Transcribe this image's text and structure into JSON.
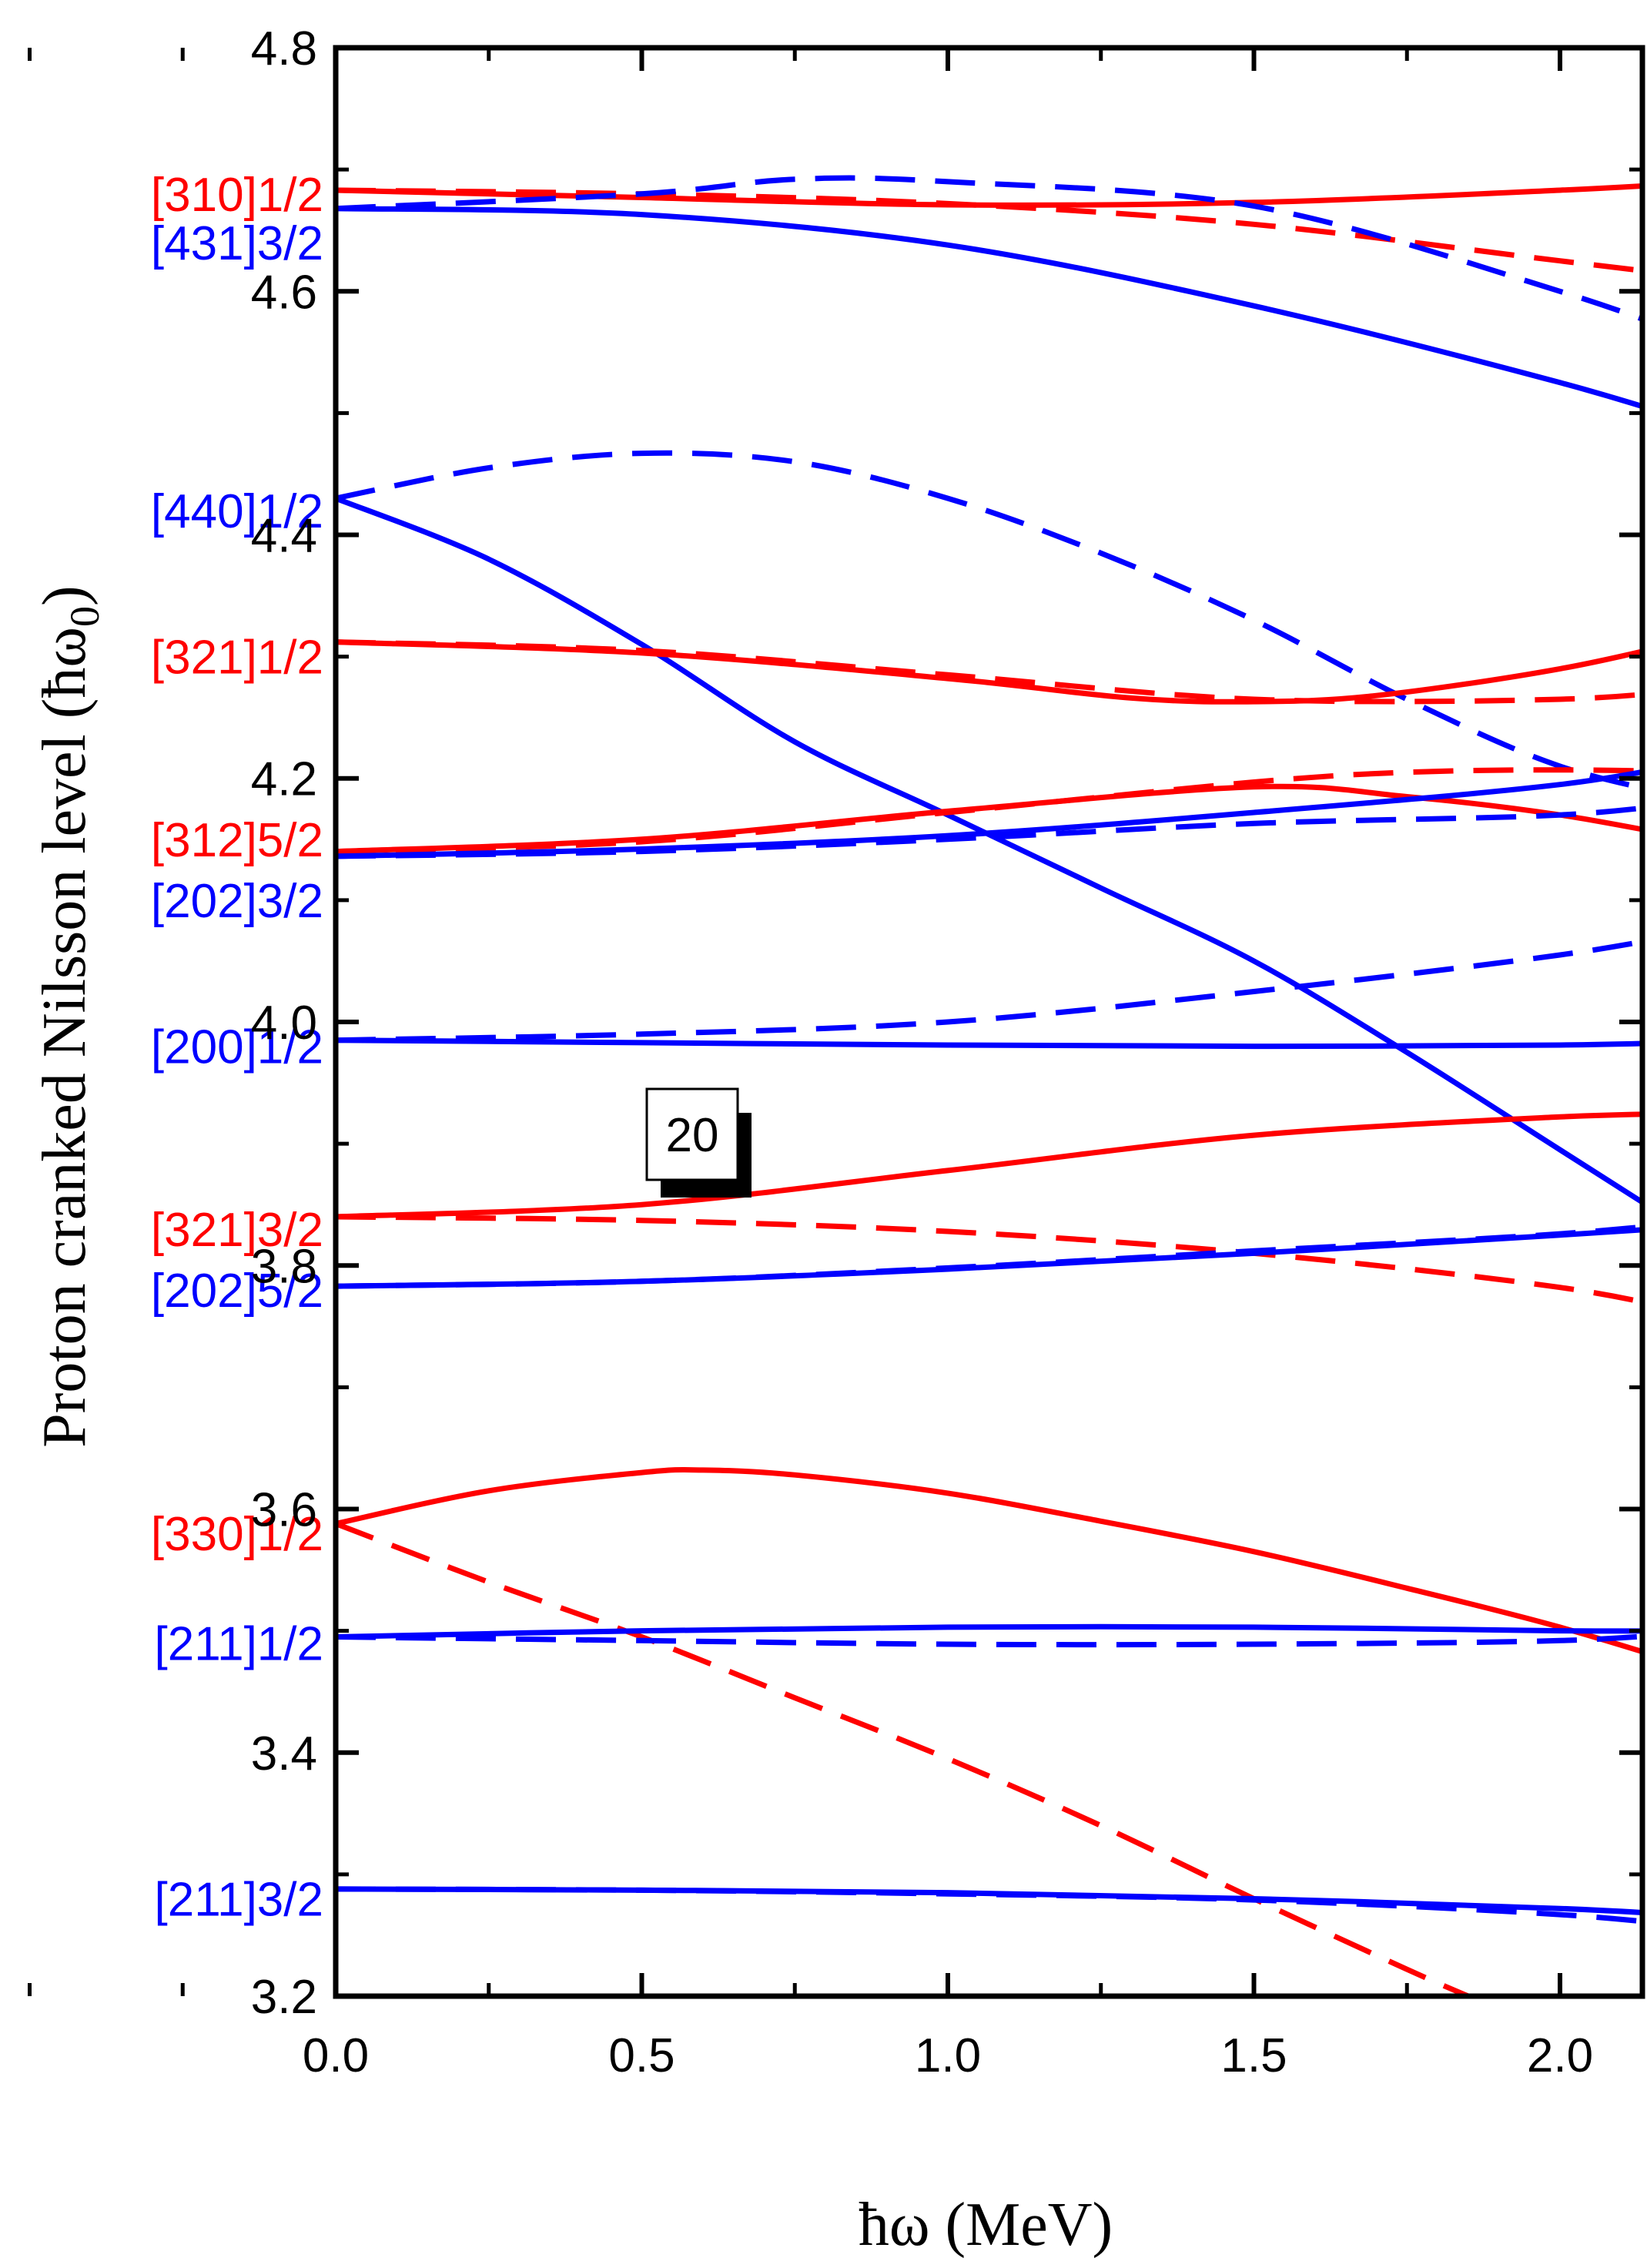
{
  "chart_data": {
    "type": "line",
    "xlabel": "ħω (MeV)",
    "ylabel_text": "Proton cranked Nilsson level (ħω",
    "ylabel_subscript": "0",
    "ylabel_close": ")",
    "xlim": [
      -0.65,
      2.25
    ],
    "ylim": [
      3.2,
      4.8
    ],
    "xticks": [
      0.0,
      0.5,
      1.0,
      1.5,
      2.0
    ],
    "xtick_labels": [
      "0.0",
      "0.5",
      "1.0",
      "1.5",
      "2.0"
    ],
    "xminor": [
      -0.5,
      -0.25,
      0.25,
      0.75,
      1.25,
      1.75
    ],
    "yticks": [
      3.2,
      3.4,
      3.6,
      3.8,
      4.0,
      4.2,
      4.4,
      4.6,
      4.8
    ],
    "ytick_labels": [
      "3.2",
      "3.4",
      "3.6",
      "3.8",
      "4.0",
      "4.2",
      "4.4",
      "4.6",
      "4.8"
    ],
    "yminor": [
      3.3,
      3.5,
      3.7,
      3.9,
      4.1,
      4.3,
      4.5,
      4.7
    ],
    "annotation": "20",
    "colors": {
      "red": "#ff0000",
      "blue": "#0000ff"
    },
    "labels": [
      {
        "text": "[310]1/2",
        "color": "red",
        "y": 4.68
      },
      {
        "text": "[431]3/2",
        "color": "blue",
        "y": 4.64
      },
      {
        "text": "[440]1/2",
        "color": "blue",
        "y": 4.42
      },
      {
        "text": "[321]1/2",
        "color": "red",
        "y": 4.3
      },
      {
        "text": "[312]5/2",
        "color": "red",
        "y": 4.15
      },
      {
        "text": "[202]3/2",
        "color": "blue",
        "y": 4.1
      },
      {
        "text": "[200]1/2",
        "color": "blue",
        "y": 3.98
      },
      {
        "text": "[321]3/2",
        "color": "red",
        "y": 3.83
      },
      {
        "text": "[202]5/2",
        "color": "blue",
        "y": 3.78
      },
      {
        "text": "[330]1/2",
        "color": "red",
        "y": 3.58
      },
      {
        "text": "[211]1/2",
        "color": "blue",
        "y": 3.49
      },
      {
        "text": "[211]3/2",
        "color": "blue",
        "y": 3.28
      }
    ],
    "series": [
      {
        "color": "red",
        "style": "solid",
        "points": [
          [
            0,
            4.683
          ],
          [
            0.5,
            4.677
          ],
          [
            1.0,
            4.671
          ],
          [
            1.5,
            4.673
          ],
          [
            2.0,
            4.683
          ],
          [
            2.25,
            4.69
          ]
        ]
      },
      {
        "color": "red",
        "style": "dashed",
        "points": [
          [
            0,
            4.683
          ],
          [
            0.5,
            4.68
          ],
          [
            1.0,
            4.672
          ],
          [
            1.5,
            4.655
          ],
          [
            2.0,
            4.625
          ],
          [
            2.25,
            4.61
          ]
        ]
      },
      {
        "color": "blue",
        "style": "solid",
        "points": [
          [
            0,
            4.668
          ],
          [
            0.5,
            4.663
          ],
          [
            1.0,
            4.638
          ],
          [
            1.5,
            4.588
          ],
          [
            2.0,
            4.525
          ],
          [
            2.25,
            4.487
          ]
        ]
      },
      {
        "color": "blue",
        "style": "dashed",
        "points": [
          [
            0,
            4.668
          ],
          [
            0.5,
            4.68
          ],
          [
            0.75,
            4.692
          ],
          [
            1.0,
            4.69
          ],
          [
            1.5,
            4.67
          ],
          [
            2.0,
            4.6
          ],
          [
            2.25,
            4.555
          ]
        ]
      },
      {
        "color": "blue",
        "style": "solid",
        "points": [
          [
            0,
            4.43
          ],
          [
            0.25,
            4.38
          ],
          [
            0.5,
            4.31
          ],
          [
            0.75,
            4.23
          ],
          [
            1.0,
            4.17
          ],
          [
            1.25,
            4.11
          ],
          [
            1.5,
            4.05
          ],
          [
            1.75,
            3.975
          ],
          [
            2.0,
            3.895
          ],
          [
            2.25,
            3.815
          ]
        ]
      },
      {
        "color": "blue",
        "style": "dashed",
        "points": [
          [
            0,
            4.43
          ],
          [
            0.25,
            4.455
          ],
          [
            0.5,
            4.467
          ],
          [
            0.75,
            4.46
          ],
          [
            1.0,
            4.43
          ],
          [
            1.25,
            4.385
          ],
          [
            1.5,
            4.33
          ],
          [
            1.75,
            4.265
          ],
          [
            2.0,
            4.21
          ],
          [
            2.25,
            4.18
          ]
        ]
      },
      {
        "color": "red",
        "style": "solid",
        "points": [
          [
            0,
            4.312
          ],
          [
            0.5,
            4.303
          ],
          [
            1.0,
            4.282
          ],
          [
            1.3,
            4.266
          ],
          [
            1.5,
            4.263
          ],
          [
            1.7,
            4.268
          ],
          [
            2.0,
            4.29
          ],
          [
            2.25,
            4.318
          ]
        ]
      },
      {
        "color": "red",
        "style": "dashed",
        "points": [
          [
            0,
            4.312
          ],
          [
            0.5,
            4.305
          ],
          [
            1.0,
            4.285
          ],
          [
            1.5,
            4.265
          ],
          [
            2.0,
            4.265
          ],
          [
            2.25,
            4.275
          ]
        ]
      },
      {
        "color": "red",
        "style": "solid",
        "points": [
          [
            0,
            4.14
          ],
          [
            0.5,
            4.15
          ],
          [
            1.0,
            4.173
          ],
          [
            1.5,
            4.193
          ],
          [
            1.75,
            4.185
          ],
          [
            2.0,
            4.17
          ],
          [
            2.25,
            4.147
          ]
        ]
      },
      {
        "color": "red",
        "style": "dashed",
        "points": [
          [
            0,
            4.14
          ],
          [
            0.5,
            4.148
          ],
          [
            1.0,
            4.172
          ],
          [
            1.5,
            4.197
          ],
          [
            1.75,
            4.205
          ],
          [
            2.0,
            4.207
          ],
          [
            2.25,
            4.205
          ]
        ]
      },
      {
        "color": "blue",
        "style": "solid",
        "points": [
          [
            0,
            4.136
          ],
          [
            0.5,
            4.142
          ],
          [
            1.0,
            4.153
          ],
          [
            1.5,
            4.172
          ],
          [
            2.0,
            4.195
          ],
          [
            2.25,
            4.217
          ]
        ]
      },
      {
        "color": "blue",
        "style": "dashed",
        "points": [
          [
            0,
            4.136
          ],
          [
            0.5,
            4.14
          ],
          [
            1.0,
            4.15
          ],
          [
            1.5,
            4.163
          ],
          [
            2.0,
            4.17
          ],
          [
            2.25,
            4.183
          ]
        ]
      },
      {
        "color": "blue",
        "style": "solid",
        "points": [
          [
            0,
            3.985
          ],
          [
            0.5,
            3.983
          ],
          [
            1.0,
            3.981
          ],
          [
            1.5,
            3.98
          ],
          [
            2.0,
            3.981
          ],
          [
            2.25,
            3.984
          ]
        ]
      },
      {
        "color": "blue",
        "style": "dashed",
        "points": [
          [
            0,
            3.985
          ],
          [
            0.5,
            3.99
          ],
          [
            1.0,
            4.0
          ],
          [
            1.5,
            4.025
          ],
          [
            2.0,
            4.055
          ],
          [
            2.25,
            4.077
          ]
        ]
      },
      {
        "color": "red",
        "style": "solid",
        "points": [
          [
            0,
            3.84
          ],
          [
            0.5,
            3.85
          ],
          [
            1.0,
            3.878
          ],
          [
            1.5,
            3.907
          ],
          [
            2.0,
            3.922
          ],
          [
            2.25,
            3.925
          ]
        ]
      },
      {
        "color": "red",
        "style": "dashed",
        "points": [
          [
            0,
            3.84
          ],
          [
            0.5,
            3.837
          ],
          [
            1.0,
            3.828
          ],
          [
            1.5,
            3.81
          ],
          [
            2.0,
            3.782
          ],
          [
            2.25,
            3.757
          ]
        ]
      },
      {
        "color": "blue",
        "style": "solid",
        "points": [
          [
            0,
            3.783
          ],
          [
            0.5,
            3.787
          ],
          [
            1.0,
            3.797
          ],
          [
            1.5,
            3.81
          ],
          [
            2.0,
            3.825
          ],
          [
            2.25,
            3.833
          ]
        ]
      },
      {
        "color": "blue",
        "style": "dashed",
        "points": [
          [
            0,
            3.783
          ],
          [
            0.5,
            3.787
          ],
          [
            1.0,
            3.798
          ],
          [
            1.5,
            3.812
          ],
          [
            2.0,
            3.826
          ],
          [
            2.25,
            3.838
          ]
        ]
      },
      {
        "color": "red",
        "style": "solid",
        "points": [
          [
            0,
            3.588
          ],
          [
            0.25,
            3.615
          ],
          [
            0.5,
            3.63
          ],
          [
            0.6,
            3.632
          ],
          [
            0.75,
            3.628
          ],
          [
            1.0,
            3.613
          ],
          [
            1.25,
            3.59
          ],
          [
            1.5,
            3.565
          ],
          [
            1.75,
            3.535
          ],
          [
            2.0,
            3.503
          ],
          [
            2.25,
            3.465
          ]
        ]
      },
      {
        "color": "red",
        "style": "dashed",
        "points": [
          [
            0,
            3.588
          ],
          [
            0.25,
            3.54
          ],
          [
            0.5,
            3.495
          ],
          [
            0.75,
            3.445
          ],
          [
            1.0,
            3.395
          ],
          [
            1.25,
            3.34
          ],
          [
            1.5,
            3.28
          ],
          [
            1.75,
            3.222
          ],
          [
            1.85,
            3.2
          ]
        ]
      },
      {
        "color": "blue",
        "style": "solid",
        "points": [
          [
            0,
            3.495
          ],
          [
            0.5,
            3.5
          ],
          [
            1.0,
            3.503
          ],
          [
            1.5,
            3.503
          ],
          [
            2.0,
            3.5
          ],
          [
            2.25,
            3.5
          ]
        ]
      },
      {
        "color": "blue",
        "style": "dashed",
        "points": [
          [
            0,
            3.495
          ],
          [
            0.5,
            3.492
          ],
          [
            1.0,
            3.489
          ],
          [
            1.5,
            3.489
          ],
          [
            2.0,
            3.492
          ],
          [
            2.25,
            3.5
          ]
        ]
      },
      {
        "color": "blue",
        "style": "solid",
        "points": [
          [
            0,
            3.288
          ],
          [
            0.5,
            3.287
          ],
          [
            1.0,
            3.285
          ],
          [
            1.5,
            3.28
          ],
          [
            2.0,
            3.272
          ],
          [
            2.25,
            3.265
          ]
        ]
      },
      {
        "color": "blue",
        "style": "dashed",
        "points": [
          [
            0,
            3.288
          ],
          [
            0.5,
            3.287
          ],
          [
            1.0,
            3.284
          ],
          [
            1.5,
            3.279
          ],
          [
            2.0,
            3.267
          ],
          [
            2.25,
            3.255
          ]
        ]
      }
    ]
  }
}
